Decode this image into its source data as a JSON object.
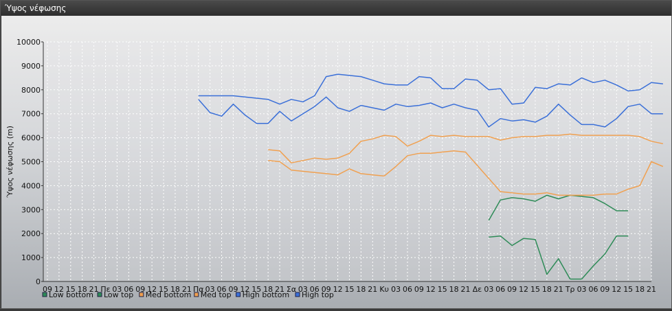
{
  "window": {
    "title": "Ύψος νέφωσης"
  },
  "colors": {
    "low": "#2e8b57",
    "med": "#f0a050",
    "high": "#3a6fd8"
  },
  "chart_data": {
    "type": "line",
    "title": "",
    "ylabel": "Ύψος νέφωσης (m)",
    "xlabel": "",
    "ylim": [
      0,
      10000
    ],
    "yticks": [
      0,
      1000,
      2000,
      3000,
      4000,
      5000,
      6000,
      7000,
      8000,
      9000,
      10000
    ],
    "grid": true,
    "legend_position": "bottom-left",
    "x_labels": [
      "09",
      "12",
      "15",
      "18",
      "21",
      "Πε",
      "03",
      "06",
      "09",
      "12",
      "15",
      "18",
      "21",
      "Πα",
      "03",
      "06",
      "09",
      "12",
      "15",
      "18",
      "21",
      "Σα",
      "03",
      "06",
      "09",
      "12",
      "15",
      "18",
      "21",
      "Κυ",
      "03",
      "06",
      "09",
      "12",
      "15",
      "18",
      "21",
      "Δε",
      "03",
      "06",
      "09",
      "12",
      "15",
      "18",
      "21",
      "Τρ",
      "03",
      "06",
      "09",
      "12",
      "15",
      "18",
      "21"
    ],
    "series": [
      {
        "name": "Low bottom",
        "color_key": "low",
        "start_index": 38,
        "values": [
          1850,
          1900,
          1500,
          1800,
          1750,
          300,
          950,
          100,
          100,
          650,
          1150,
          1900,
          1900
        ]
      },
      {
        "name": "Low top",
        "color_key": "low",
        "start_index": 38,
        "values": [
          2550,
          3400,
          3500,
          3450,
          3350,
          3600,
          3450,
          3600,
          3550,
          3500,
          3250,
          2950,
          2950
        ]
      },
      {
        "name": "Med bottom",
        "color_key": "med",
        "start_index": 19,
        "values": [
          5050,
          5000,
          4650,
          4600,
          4550,
          4500,
          4450,
          4700,
          4500,
          4450,
          4400,
          4800,
          5250,
          5350,
          5350,
          5400,
          5450,
          5400,
          4850,
          4300,
          3750,
          3700,
          3650,
          3650,
          3700,
          3600,
          3600,
          3600,
          3600,
          3650,
          3650,
          3850,
          4000,
          5000,
          4800
        ]
      },
      {
        "name": "Med top",
        "color_key": "med",
        "start_index": 19,
        "values": [
          5500,
          5450,
          4950,
          5050,
          5150,
          5100,
          5150,
          5350,
          5850,
          5950,
          6100,
          6050,
          5650,
          5850,
          6100,
          6050,
          6100,
          6050,
          6050,
          6050,
          5900,
          6000,
          6050,
          6050,
          6100,
          6100,
          6150,
          6100,
          6100,
          6100,
          6100,
          6100,
          6050,
          5850,
          5750
        ]
      },
      {
        "name": "High bottom",
        "color_key": "high",
        "start_index": 13,
        "values": [
          7600,
          7050,
          6900,
          7400,
          6950,
          6600,
          6600,
          7100,
          6700,
          7000,
          7300,
          7700,
          7250,
          7100,
          7350,
          7250,
          7150,
          7400,
          7300,
          7350,
          7450,
          7250,
          7400,
          7250,
          7150,
          6450,
          6800,
          6700,
          6750,
          6650,
          6900,
          7400,
          6950,
          6550,
          6550,
          6450,
          6800,
          7300,
          7400,
          7000,
          7000
        ]
      },
      {
        "name": "High top",
        "color_key": "high",
        "start_index": 13,
        "values": [
          7750,
          7750,
          7750,
          7750,
          7700,
          7650,
          7600,
          7400,
          7600,
          7500,
          7750,
          8550,
          8650,
          8600,
          8550,
          8400,
          8250,
          8200,
          8200,
          8550,
          8500,
          8050,
          8050,
          8450,
          8400,
          8000,
          8050,
          7400,
          7450,
          8100,
          8050,
          8250,
          8200,
          8500,
          8300,
          8400,
          8200,
          7950,
          8000,
          8300,
          8250
        ]
      }
    ]
  }
}
